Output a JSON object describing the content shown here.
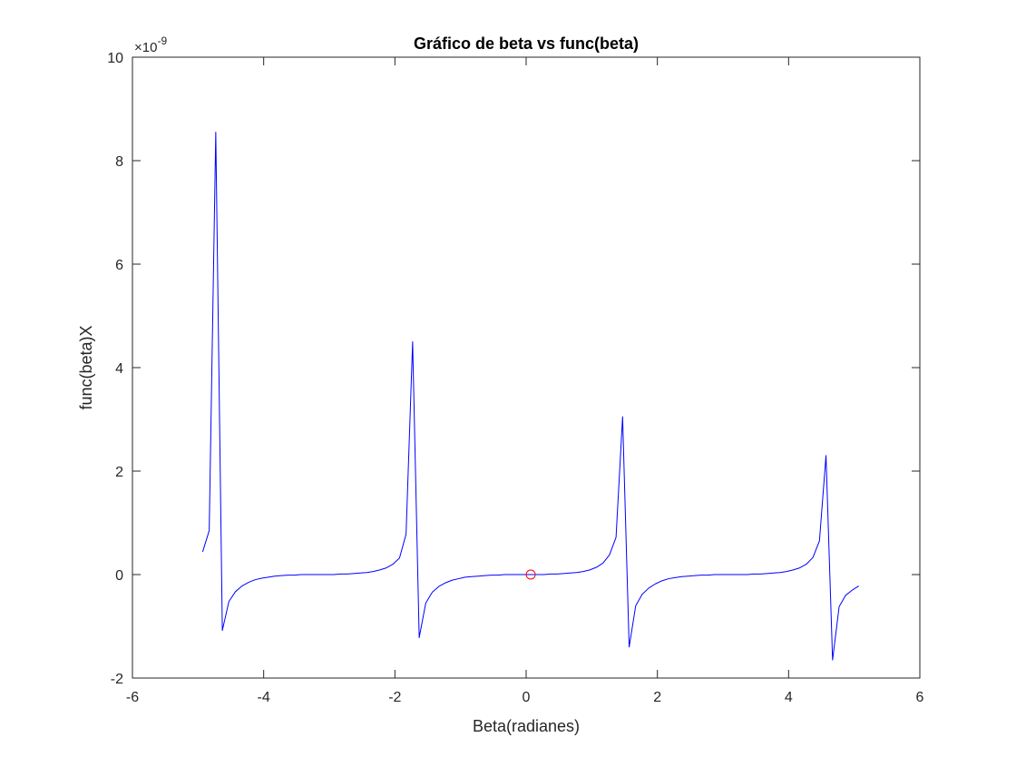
{
  "chart_data": {
    "type": "line",
    "title": "Gráfico de beta vs func(beta)",
    "xlabel": "Beta(radianes)",
    "ylabel": "func(beta)X",
    "xlim": [
      -6,
      6
    ],
    "ylim": [
      -2,
      10
    ],
    "y_exponent": {
      "base": "×10",
      "power": "-9"
    },
    "xticks": [
      -6,
      -4,
      -2,
      0,
      2,
      4,
      6
    ],
    "yticks": [
      -2,
      0,
      2,
      4,
      6,
      8,
      10
    ],
    "grid": false,
    "box": true,
    "series": [
      {
        "color": "#0000ff",
        "marker": "none",
        "x": [
          -4.93,
          -4.83,
          -4.73,
          -4.63,
          -4.53,
          -4.43,
          -4.33,
          -4.23,
          -4.13,
          -4.03,
          -3.93,
          -3.83,
          -3.73,
          -3.63,
          -3.53,
          -3.43,
          -3.33,
          -3.23,
          -3.13,
          -3.03,
          -2.93,
          -2.83,
          -2.73,
          -2.63,
          -2.53,
          -2.43,
          -2.33,
          -2.23,
          -2.13,
          -2.03,
          -1.93,
          -1.83,
          -1.73,
          -1.63,
          -1.53,
          -1.43,
          -1.33,
          -1.23,
          -1.13,
          -1.03,
          -0.93,
          -0.83,
          -0.73,
          -0.63,
          -0.53,
          -0.43,
          -0.33,
          -0.23,
          -0.13,
          -0.03,
          0.07,
          0.17,
          0.27,
          0.37,
          0.47,
          0.57,
          0.67,
          0.77,
          0.87,
          0.97,
          1.07,
          1.17,
          1.27,
          1.37,
          1.47,
          1.57,
          1.67,
          1.77,
          1.87,
          1.97,
          2.07,
          2.17,
          2.27,
          2.37,
          2.47,
          2.57,
          2.67,
          2.77,
          2.87,
          2.97,
          3.07,
          3.17,
          3.27,
          3.37,
          3.47,
          3.57,
          3.67,
          3.77,
          3.87,
          3.97,
          4.07,
          4.17,
          4.27,
          4.37,
          4.47,
          4.57,
          4.67,
          4.77,
          4.87,
          4.97,
          5.07
        ],
        "y": [
          0.44,
          0.85,
          8.55,
          -1.08,
          -0.52,
          -0.33,
          -0.22,
          -0.15,
          -0.1,
          -0.07,
          -0.05,
          -0.03,
          -0.02,
          -0.01,
          -0.01,
          0.0,
          0.0,
          0.0,
          0.0,
          0.0,
          0.0,
          0.01,
          0.01,
          0.02,
          0.03,
          0.04,
          0.06,
          0.09,
          0.13,
          0.2,
          0.32,
          0.78,
          4.5,
          -1.22,
          -0.55,
          -0.34,
          -0.23,
          -0.16,
          -0.11,
          -0.08,
          -0.05,
          -0.04,
          -0.03,
          -0.02,
          -0.01,
          -0.01,
          0.0,
          0.0,
          0.0,
          0.0,
          0.0,
          0.0,
          0.0,
          0.01,
          0.01,
          0.02,
          0.03,
          0.04,
          0.06,
          0.09,
          0.14,
          0.22,
          0.38,
          0.72,
          3.05,
          -1.4,
          -0.6,
          -0.38,
          -0.26,
          -0.18,
          -0.12,
          -0.08,
          -0.06,
          -0.04,
          -0.03,
          -0.02,
          -0.01,
          -0.01,
          0.0,
          0.0,
          0.0,
          0.0,
          0.0,
          0.0,
          0.01,
          0.01,
          0.02,
          0.03,
          0.04,
          0.06,
          0.09,
          0.13,
          0.2,
          0.33,
          0.65,
          2.3,
          -1.65,
          -0.62,
          -0.4,
          -0.3,
          -0.22
        ]
      },
      {
        "color": "#ff0000",
        "marker": "circle",
        "line": "none",
        "x": [
          0.07
        ],
        "y": [
          0.0
        ]
      }
    ]
  }
}
